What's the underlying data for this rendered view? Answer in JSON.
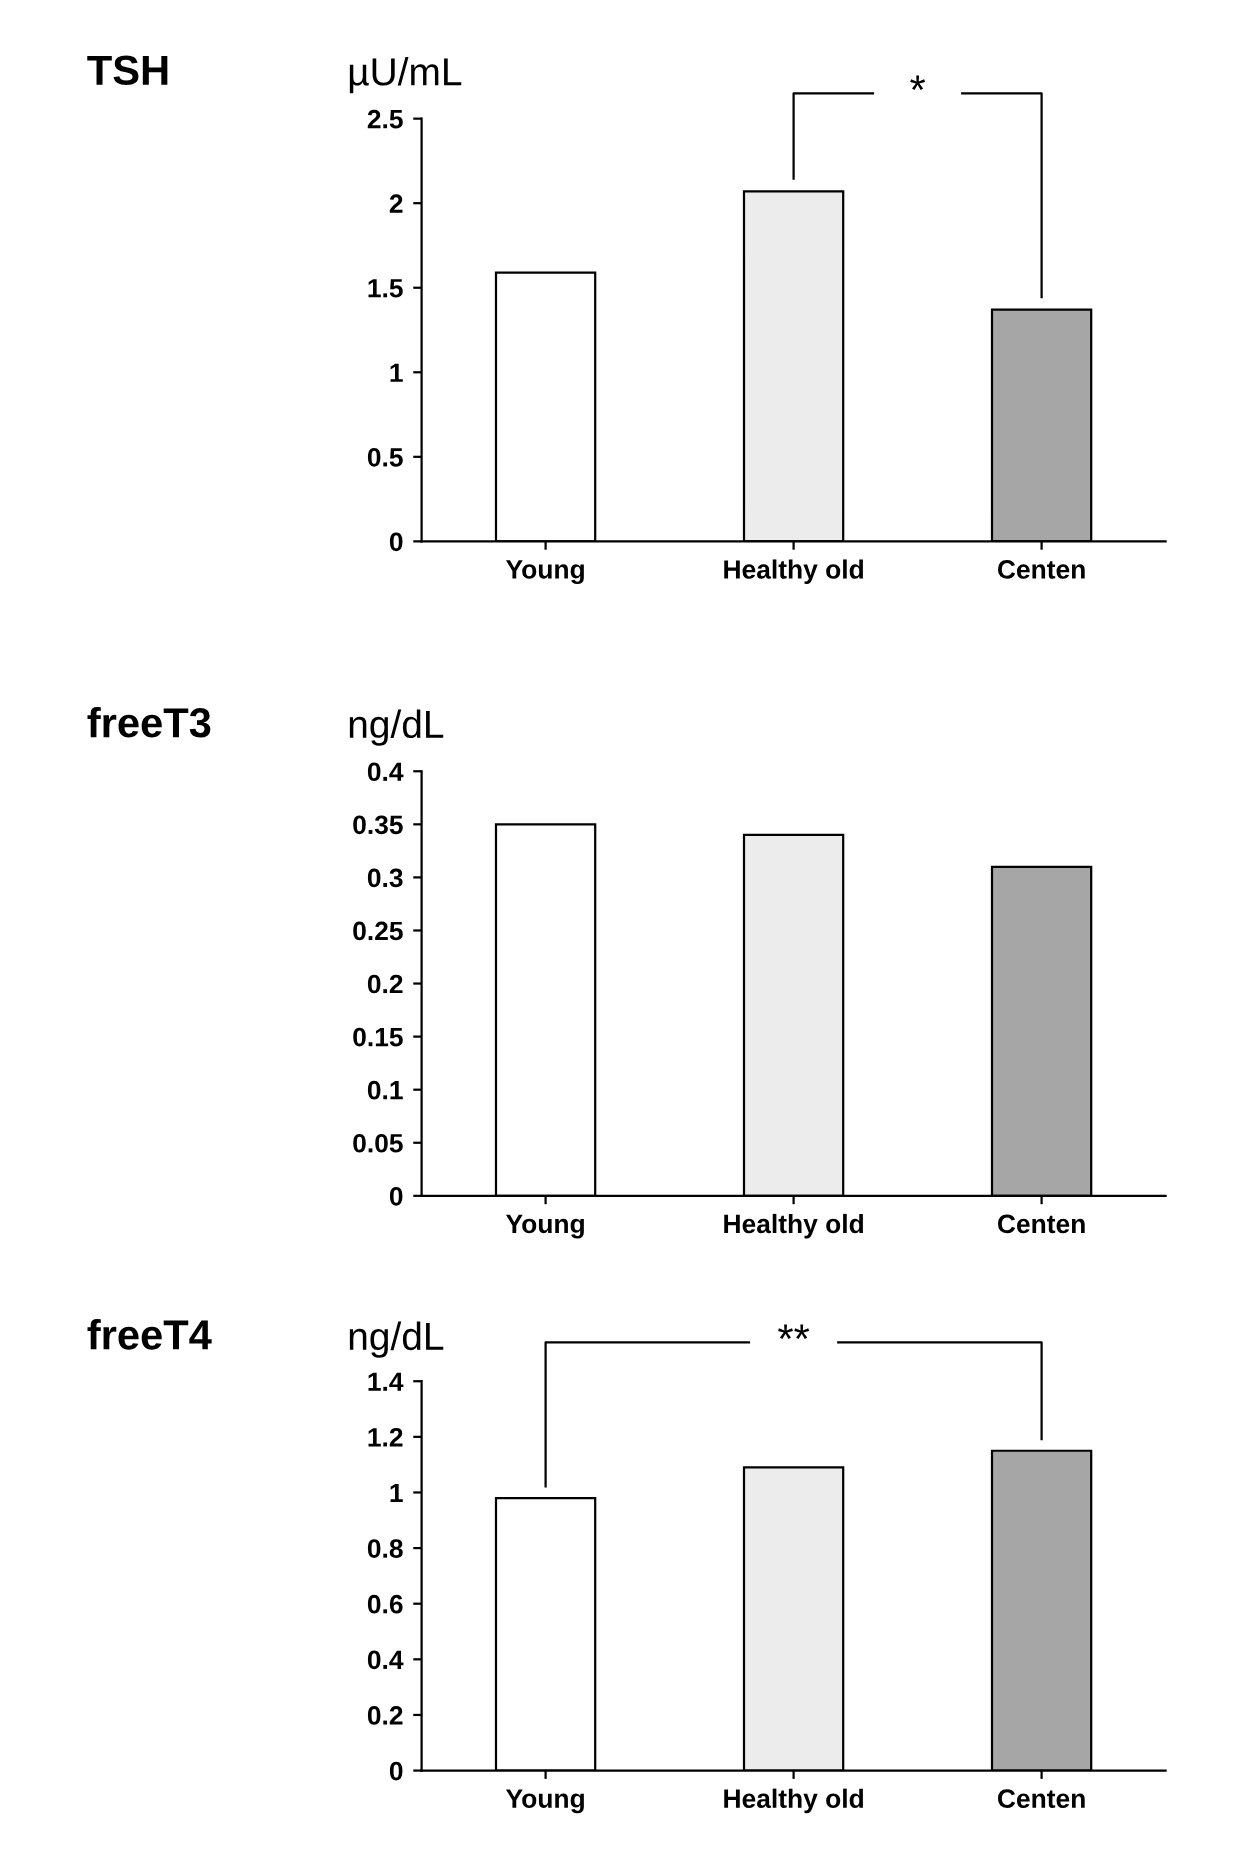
{
  "chart_data": [
    {
      "type": "bar",
      "title": "TSH",
      "ylabel": "µU/mL",
      "categories": [
        "Young",
        "Healthy old",
        "Centen"
      ],
      "values": [
        1.59,
        2.07,
        1.37
      ],
      "colors": [
        "#ffffff",
        "#ececec",
        "#a6a6a6"
      ],
      "ylim": [
        0,
        2.5
      ],
      "yticks": [
        0,
        0.5,
        1,
        1.5,
        2,
        2.5
      ],
      "grid": false,
      "legend": false,
      "annotations": [
        "*"
      ]
    },
    {
      "type": "bar",
      "title": "freeT3",
      "ylabel": "ng/dL",
      "categories": [
        "Young",
        "Healthy old",
        "Centen"
      ],
      "values": [
        0.35,
        0.34,
        0.31
      ],
      "colors": [
        "#ffffff",
        "#ececec",
        "#a6a6a6"
      ],
      "ylim": [
        0,
        0.4
      ],
      "yticks": [
        0,
        0.05,
        0.1,
        0.15,
        0.2,
        0.25,
        0.3,
        0.35,
        0.4
      ],
      "grid": false,
      "legend": false
    },
    {
      "type": "bar",
      "title": "freeT4",
      "ylabel": "ng/dL",
      "categories": [
        "Young",
        "Healthy old",
        "Centen"
      ],
      "values": [
        0.98,
        1.09,
        1.15
      ],
      "colors": [
        "#ffffff",
        "#ececec",
        "#a6a6a6"
      ],
      "ylim": [
        0,
        1.4
      ],
      "yticks": [
        0,
        0.2,
        0.4,
        0.6,
        0.8,
        1,
        1.2,
        1.4
      ],
      "grid": false,
      "legend": false,
      "annotations": [
        "**"
      ]
    }
  ]
}
